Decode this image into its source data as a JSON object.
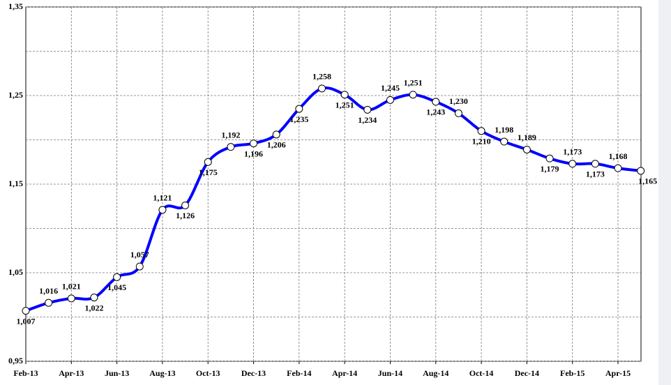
{
  "chart_data": {
    "type": "line",
    "categories": [
      "Feb-13",
      null,
      "Apr-13",
      null,
      "Jun-13",
      null,
      "Aug-13",
      null,
      "Oct-13",
      null,
      "Dec-13",
      null,
      "Feb-14",
      null,
      "Apr-14",
      null,
      "Jun-14",
      null,
      "Aug-14",
      null,
      "Oct-14",
      null,
      "Dec-14",
      null,
      "Feb-15",
      null,
      "Apr-15",
      null
    ],
    "series": [
      {
        "color": "#0000ff",
        "values": [
          1.007,
          1.016,
          1.021,
          1.022,
          1.045,
          1.057,
          1.121,
          1.126,
          1.175,
          1.192,
          1.196,
          1.206,
          1.235,
          1.258,
          1.251,
          1.234,
          1.245,
          1.251,
          1.243,
          1.23,
          1.21,
          1.198,
          1.189,
          1.179,
          1.173,
          1.173,
          1.168,
          1.165
        ],
        "value_labels": [
          "1,007",
          "1,016",
          "1,021",
          "1,022",
          "1,045",
          "1,057",
          "1,121",
          "1,126",
          "1,175",
          "1,192",
          "1,196",
          "1,206",
          "1,235",
          "1,258",
          "1,251",
          "1,234",
          "1,245",
          "1,251",
          "1,243",
          "1,230",
          "1,210",
          "1,198",
          "1,189",
          "1,179",
          "1,173",
          "1,173",
          "1,168",
          "1,165"
        ]
      }
    ],
    "ylim": [
      0.95,
      1.35
    ],
    "yticks": [
      {
        "value": 0.95,
        "label": "0,95"
      },
      {
        "value": 1.05,
        "label": "1,05"
      },
      {
        "value": 1.15,
        "label": "1,15"
      },
      {
        "value": 1.25,
        "label": "1,25"
      },
      {
        "value": 1.35,
        "label": "1,35"
      }
    ],
    "minor_yticks": [
      1.0,
      1.1,
      1.2,
      1.3
    ],
    "grid": true
  }
}
